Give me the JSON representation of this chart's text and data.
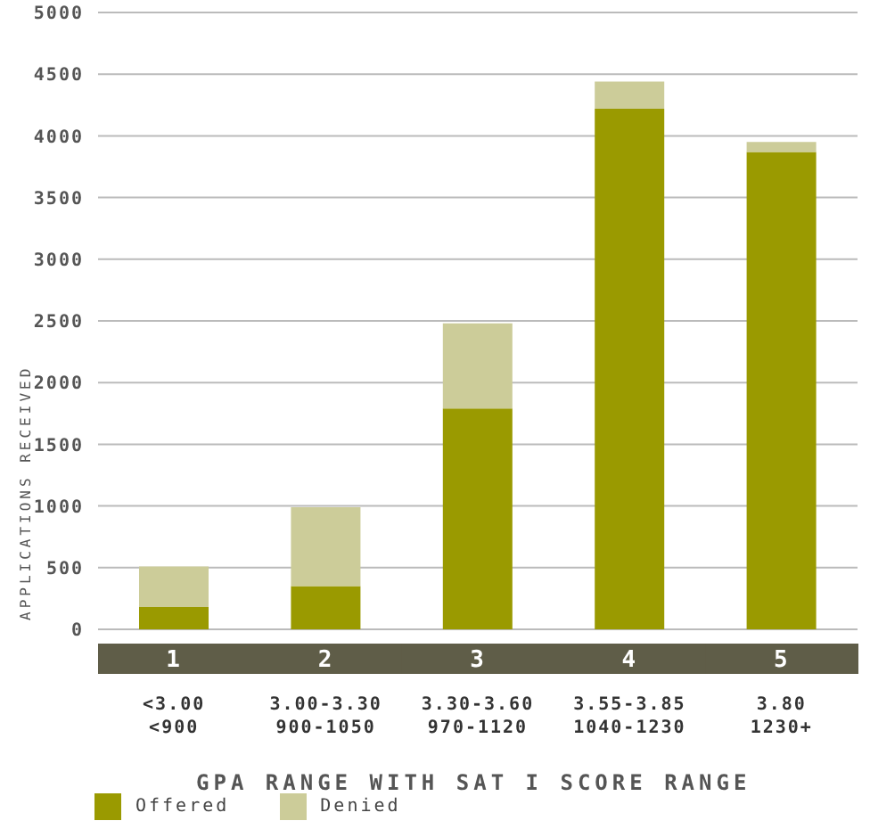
{
  "chart_data": {
    "type": "bar",
    "stacked": true,
    "xlabel": "GPA RANGE WITH SAT I SCORE RANGE",
    "ylabel": "APPLICATIONS RECEIVED",
    "categories": [
      "1\n<3.00\n<900",
      "2\n3.00-3.30\n900-1050",
      "3\n3.30-3.60\n970-1120",
      "4\n3.55-3.85\n1040-1230",
      "5\n3.80\n1230+"
    ],
    "series": [
      {
        "name": "Offered",
        "color": "#9a9a00",
        "values": [
          180,
          350,
          1790,
          4220,
          3870
        ]
      },
      {
        "name": "Denied",
        "color": "#cccc99",
        "values": [
          330,
          640,
          690,
          220,
          80
        ]
      }
    ],
    "ylim": [
      0,
      5000
    ],
    "yticks": [
      0,
      500,
      1000,
      1500,
      2000,
      2500,
      3000,
      3500,
      4000,
      4500,
      5000
    ],
    "grid": "y",
    "legend": "bottom left"
  }
}
